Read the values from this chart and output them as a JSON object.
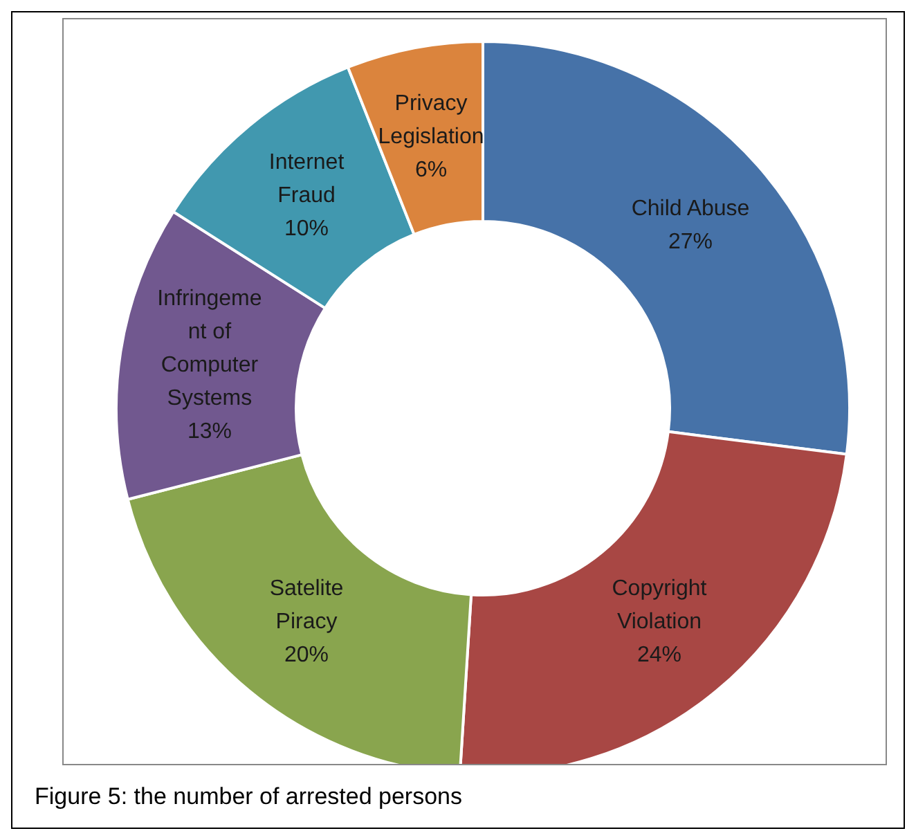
{
  "chart_data": {
    "type": "donut",
    "categories": [
      "Child Abuse",
      "Copyright Violation",
      "Satelite Piracy",
      "Infringement of Computer Systems",
      "Internet Fraud",
      "Privacy Legislation"
    ],
    "values": [
      27,
      24,
      20,
      13,
      10,
      6
    ],
    "colors": [
      "#4672a8",
      "#a84744",
      "#89a54e",
      "#71588f",
      "#4198af",
      "#db843d"
    ],
    "value_labels": [
      "27%",
      "24%",
      "20%",
      "13%",
      "10%",
      "6%"
    ],
    "annotations": [
      "Figure 5: the number of arrested persons"
    ]
  }
}
